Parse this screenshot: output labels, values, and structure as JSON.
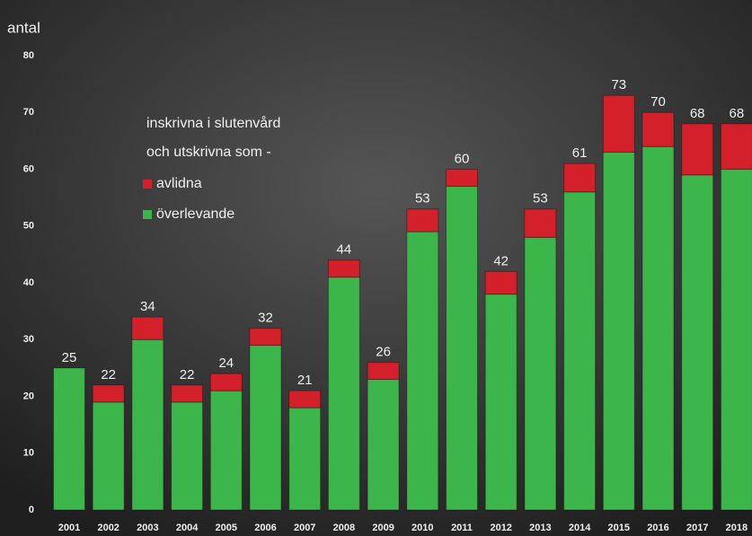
{
  "chart_data": {
    "type": "stacked_bar",
    "y_label": "antal",
    "legend_title": [
      "inskrivna i slutenvård",
      "och utskrivna som -"
    ],
    "categories": [
      "2001",
      "2002",
      "2003",
      "2004",
      "2005",
      "2006",
      "2007",
      "2008",
      "2009",
      "2010",
      "2011",
      "2012",
      "2013",
      "2014",
      "2015",
      "2016",
      "2017",
      "2018"
    ],
    "series": [
      {
        "name": "överlevande",
        "color": "#3cb54a",
        "values": [
          25,
          19,
          30,
          19,
          21,
          29,
          18,
          41,
          23,
          49,
          57,
          38,
          48,
          56,
          63,
          64,
          59,
          60
        ]
      },
      {
        "name": "avlidna",
        "color": "#d4202a",
        "values": [
          0,
          3,
          4,
          3,
          3,
          3,
          3,
          3,
          3,
          4,
          3,
          4,
          5,
          5,
          10,
          6,
          9,
          8
        ]
      }
    ],
    "totals": [
      25,
      22,
      34,
      22,
      24,
      32,
      21,
      44,
      26,
      53,
      60,
      42,
      53,
      61,
      73,
      70,
      68,
      68
    ],
    "ylim": [
      0,
      80
    ],
    "yticks": [
      0,
      10,
      20,
      30,
      40,
      50,
      60,
      70,
      80
    ]
  }
}
